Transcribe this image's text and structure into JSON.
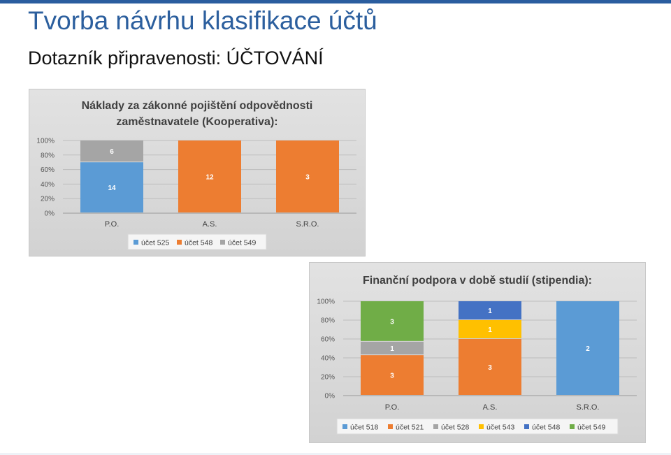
{
  "slide": {
    "title": "Tvorba návrhu klasifikace účtů",
    "subtitle": "Dotazník připravenosti: ÚČTOVÁNÍ"
  },
  "colors": {
    "accent": "#2c5f9e",
    "účet 518": "#5b9bd5",
    "účet 521": "#ed7d31",
    "účet 525": "#5b9bd5",
    "účet 528": "#a5a5a5",
    "účet 543": "#ffc000",
    "účet 548": "#4472c4",
    "účet 548 (chart 1)": "#ed7d31",
    "účet 549": "#70ad47",
    "účet 549 (chart 1)": "#a5a5a5"
  },
  "chart_data": [
    {
      "type": "bar",
      "stacked": "percent",
      "title_lines": [
        "Náklady za zákonné pojištění odpovědnosti",
        "zaměstnavatele (Kooperativa):"
      ],
      "categories": [
        "P.O.",
        "A.S.",
        "S.R.O."
      ],
      "y_ticks": [
        "0%",
        "20%",
        "40%",
        "60%",
        "80%",
        "100%"
      ],
      "ylim": [
        0,
        100
      ],
      "legend": "bottom",
      "series": [
        {
          "name": "účet 525",
          "color": "#5b9bd5",
          "values": [
            14,
            0,
            0
          ]
        },
        {
          "name": "účet 548",
          "color": "#ed7d31",
          "values": [
            0,
            12,
            3
          ]
        },
        {
          "name": "účet 549",
          "color": "#a5a5a5",
          "values": [
            6,
            0,
            0
          ]
        }
      ]
    },
    {
      "type": "bar",
      "stacked": "percent",
      "title_lines": [
        "Finanční podpora  v době studií (stipendia):"
      ],
      "categories": [
        "P.O.",
        "A.S.",
        "S.R.O."
      ],
      "y_ticks": [
        "0%",
        "20%",
        "40%",
        "60%",
        "80%",
        "100%"
      ],
      "ylim": [
        0,
        100
      ],
      "legend": "bottom",
      "series": [
        {
          "name": "účet 518",
          "color": "#5b9bd5",
          "values": [
            0,
            0,
            2
          ]
        },
        {
          "name": "účet 521",
          "color": "#ed7d31",
          "values": [
            3,
            3,
            0
          ]
        },
        {
          "name": "účet 528",
          "color": "#a5a5a5",
          "values": [
            1,
            0,
            0
          ]
        },
        {
          "name": "účet 543",
          "color": "#ffc000",
          "values": [
            0,
            1,
            0
          ]
        },
        {
          "name": "účet 548",
          "color": "#4472c4",
          "values": [
            0,
            1,
            0
          ]
        },
        {
          "name": "účet 549",
          "color": "#70ad47",
          "values": [
            3,
            0,
            0
          ]
        }
      ]
    }
  ]
}
